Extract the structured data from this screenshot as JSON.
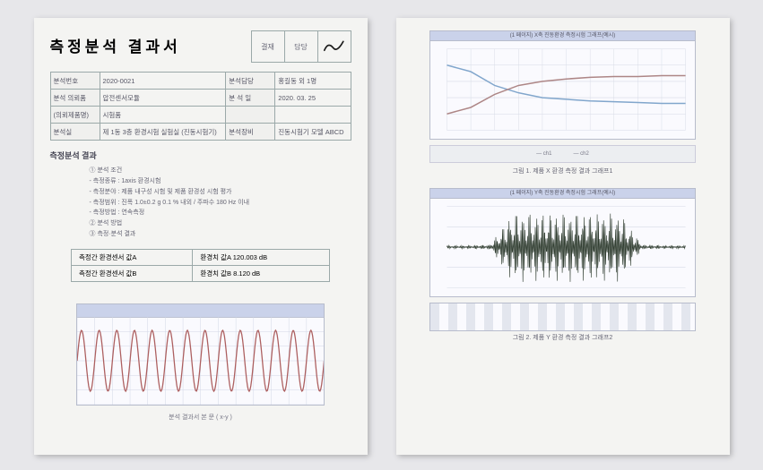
{
  "doc_title": "측정분석 결과서",
  "approval": {
    "c1": "결재",
    "c2": "담당",
    "c3": ""
  },
  "meta": {
    "r1c1l": "분석번호",
    "r1c1v": "2020-0021",
    "r1c2l": "분석담당",
    "r1c2v": "홍길동 외 1명",
    "r2c1l": "분석 의뢰품",
    "r2c1v": "압전센서모듈",
    "r2c2l": "분 석 일",
    "r2c2v": "2020. 03. 25",
    "r3c1l": "(의뢰제품명)",
    "r3c1v": "시험품",
    "r3c2l": "",
    "r3c2v": "",
    "r4c1l": "분석실",
    "r4c1v": "제 1동 3층 환경시험 실험실 (진동시험기)",
    "r4c2l": "분석장비",
    "r4c2v": "진동시험기 모델 ABCD"
  },
  "section_head": "측정분석 결과",
  "bullets": [
    "① 분석 조건",
    "- 측정종류 : 1axis 환경시험",
    "- 측정분야 : 제품 내구성 시험 및 제품 환경성 시험 평가",
    "- 측정범위 : 진폭 1.0±0.2 g 0.1 % 내외 / 주파수 180 Hz 이내",
    "- 측정방법 : 연속측정",
    "② 분석 방법",
    "③ 측정·분석 결과"
  ],
  "result": {
    "r1l": "측정간 환경센서 값A",
    "r1v": "환경치 값A  120.003 dB",
    "r2l": "측정간 환경센서 값B",
    "r2v": "환경치 값B   8.120 dB"
  },
  "footer_left": "분석 결과서 본 문 ( x-y )",
  "sheet2": {
    "panel1_title": "(1 페이지) X축 진동환경 측정시험 그래프(예시)",
    "panel1_caption": "그림 1. 제품 X 환경 측정 결과 그래프1",
    "legend1": [
      "— ch1",
      "— ch2"
    ],
    "panel2_title": "(1 페이지) Y축 진동환경 측정시험 그래프(예시)",
    "panel2_caption": "그림 2. 제품 Y 환경 측정 결과 그래프2"
  },
  "chart1": {
    "type": "line",
    "background_color": "#fafaff",
    "grid_color": "#d0d6e8",
    "line_color": "#b85d5d",
    "xlim": [
      0,
      14
    ],
    "ylim": [
      -1,
      1
    ],
    "periods": 14,
    "amplitude": 0.85
  },
  "panel1_chart": {
    "type": "line",
    "background_color": "#fafaff",
    "line_colors": [
      "#7ba7d4",
      "#b38484"
    ],
    "grid_color": "#d6dbe8",
    "xlim": [
      0,
      10
    ],
    "ylim": [
      0,
      100
    ],
    "series1": [
      80,
      72,
      55,
      46,
      40,
      38,
      36,
      35,
      34,
      33,
      33
    ],
    "series2": [
      20,
      28,
      44,
      55,
      60,
      63,
      65,
      66,
      66,
      67,
      67
    ]
  },
  "panel2_chart": {
    "type": "waveform",
    "background_color": "#fafaff",
    "line_color": "#2f3f2f",
    "grid_color": "#d6dbe8",
    "xlim": [
      0,
      100
    ],
    "ylim": [
      -1,
      1
    ],
    "envelope": [
      0.04,
      0.04,
      0.06,
      0.9,
      0.9,
      0.9,
      0.9,
      0.9,
      0.9,
      0.06,
      0.04,
      0.04
    ]
  },
  "colors": {
    "sheet_bg": "#f4f4f2",
    "canvas_bg": "#e7e7ea",
    "border": "#9aa",
    "header_bar": "#c9d2ee"
  }
}
